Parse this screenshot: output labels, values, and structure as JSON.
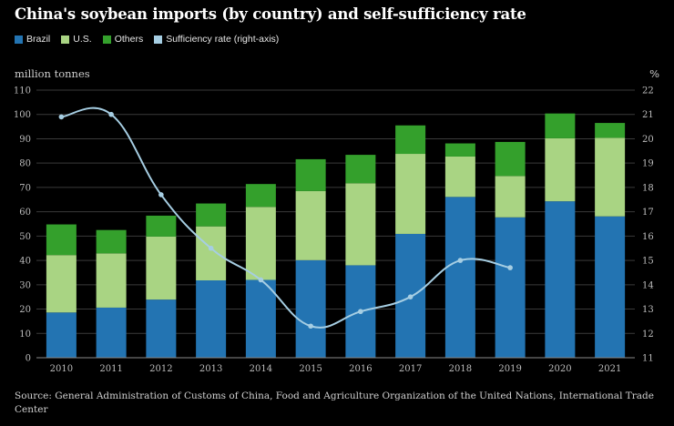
{
  "title": "China's soybean imports (by country) and self-sufficiency rate",
  "source": "Source: General Administration of Customs of China, Food and Agriculture Organization of the United Nations, International Trade Center",
  "colors": {
    "brazil": "#2374b2",
    "us": "#a9d483",
    "others": "#34a02c",
    "rate": "#a6cee3",
    "grid": "#3a3a3a",
    "axis_text": "#bdbdbd"
  },
  "chart_data": {
    "type": "bar",
    "stacked": true,
    "categories": [
      "2010",
      "2011",
      "2012",
      "2013",
      "2014",
      "2015",
      "2016",
      "2017",
      "2018",
      "2019",
      "2020",
      "2021"
    ],
    "series": [
      {
        "name": "Brazil",
        "values": [
          18.6,
          20.6,
          23.9,
          31.8,
          32.0,
          40.1,
          38.0,
          50.9,
          66.1,
          57.7,
          64.3,
          58.1
        ]
      },
      {
        "name": "U.S.",
        "values": [
          23.6,
          22.3,
          25.9,
          22.2,
          30.0,
          28.4,
          33.7,
          32.9,
          16.6,
          17.0,
          25.9,
          32.3
        ]
      },
      {
        "name": "Others",
        "values": [
          12.6,
          9.6,
          8.6,
          9.4,
          9.4,
          13.1,
          11.7,
          11.7,
          5.4,
          14.0,
          10.2,
          6.1
        ]
      }
    ],
    "line_series": {
      "name": "Sufficiency rate (right-axis)",
      "axis": "right",
      "categories": [
        "2010",
        "2011",
        "2012",
        "2013",
        "2014",
        "2015",
        "2016",
        "2017",
        "2018",
        "2019"
      ],
      "values": [
        20.9,
        21.0,
        17.7,
        15.5,
        14.2,
        12.3,
        12.9,
        13.5,
        15.0,
        14.7
      ]
    },
    "ylabel": "million tonnes",
    "ylim": [
      0,
      110
    ],
    "yticks": [
      0,
      10,
      20,
      30,
      40,
      50,
      60,
      70,
      80,
      90,
      100,
      110
    ],
    "y2label": "%",
    "y2lim": [
      11,
      22
    ],
    "y2ticks": [
      11,
      12,
      13,
      14,
      15,
      16,
      17,
      18,
      19,
      20,
      21,
      22
    ],
    "grid": true,
    "legend_position": "top-left"
  }
}
